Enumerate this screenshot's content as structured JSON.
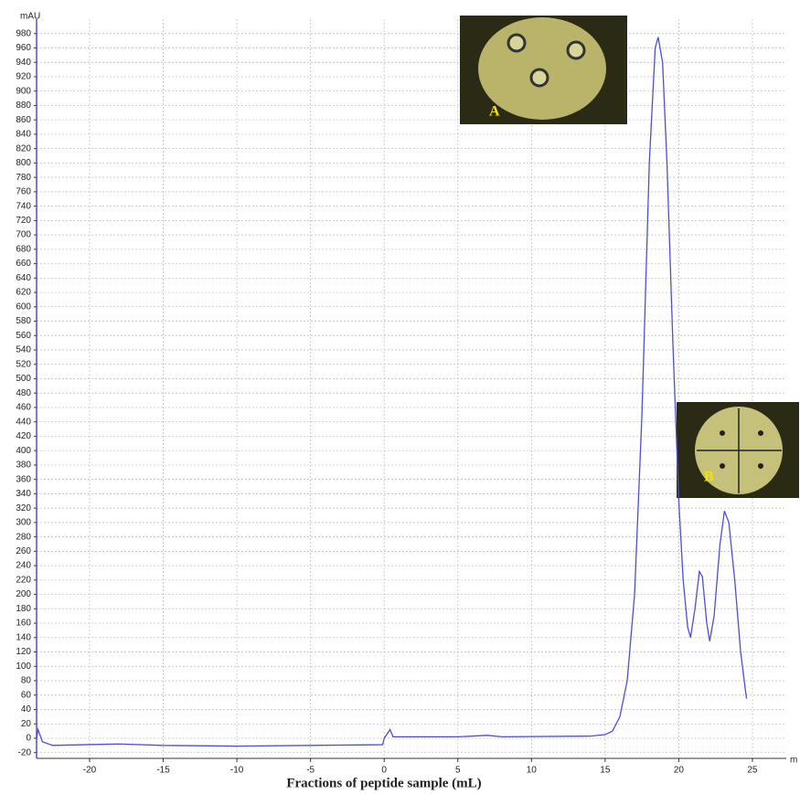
{
  "chart_data": {
    "type": "line",
    "title": "Fractions of peptide sample (mL)",
    "y_axis_label": "mAU",
    "x_axis_unit": "m",
    "insets": [
      "A",
      "B"
    ],
    "color": "#4b4fd6",
    "grid": true,
    "xlim": [
      -23.6,
      27.3
    ],
    "xticks": [
      -20,
      -15,
      -10,
      -5,
      0,
      5,
      10,
      15,
      20,
      25
    ],
    "ylim": [
      -28,
      1000
    ],
    "yticks": [
      -20,
      0,
      20,
      40,
      60,
      80,
      100,
      120,
      140,
      160,
      180,
      200,
      220,
      240,
      260,
      280,
      300,
      320,
      340,
      360,
      380,
      400,
      420,
      440,
      460,
      480,
      500,
      520,
      540,
      560,
      580,
      600,
      620,
      640,
      660,
      680,
      700,
      720,
      740,
      760,
      780,
      800,
      820,
      840,
      860,
      880,
      900,
      920,
      940,
      960,
      980
    ],
    "x": [
      -23.6,
      -23.5,
      -23.2,
      -22.5,
      -18,
      -15,
      -10,
      -5,
      -0.1,
      0,
      0.4,
      0.6,
      5,
      7,
      8,
      14,
      15,
      15.5,
      16,
      16.5,
      17,
      17.5,
      18,
      18.4,
      18.6,
      18.9,
      19.2,
      19.6,
      20,
      20.3,
      20.6,
      20.8,
      21.1,
      21.4,
      21.6,
      21.9,
      22.1,
      22.4,
      22.8,
      23.1,
      23.4,
      23.8,
      24.2,
      24.6
    ],
    "values": [
      0,
      12,
      -5,
      -10,
      -8,
      -10,
      -11,
      -10,
      -9,
      0,
      12,
      2,
      2,
      4,
      2,
      3,
      5,
      10,
      30,
      80,
      200,
      450,
      800,
      960,
      975,
      940,
      800,
      550,
      330,
      220,
      155,
      140,
      180,
      232,
      225,
      160,
      135,
      170,
      270,
      316,
      300,
      220,
      120,
      55
    ]
  }
}
